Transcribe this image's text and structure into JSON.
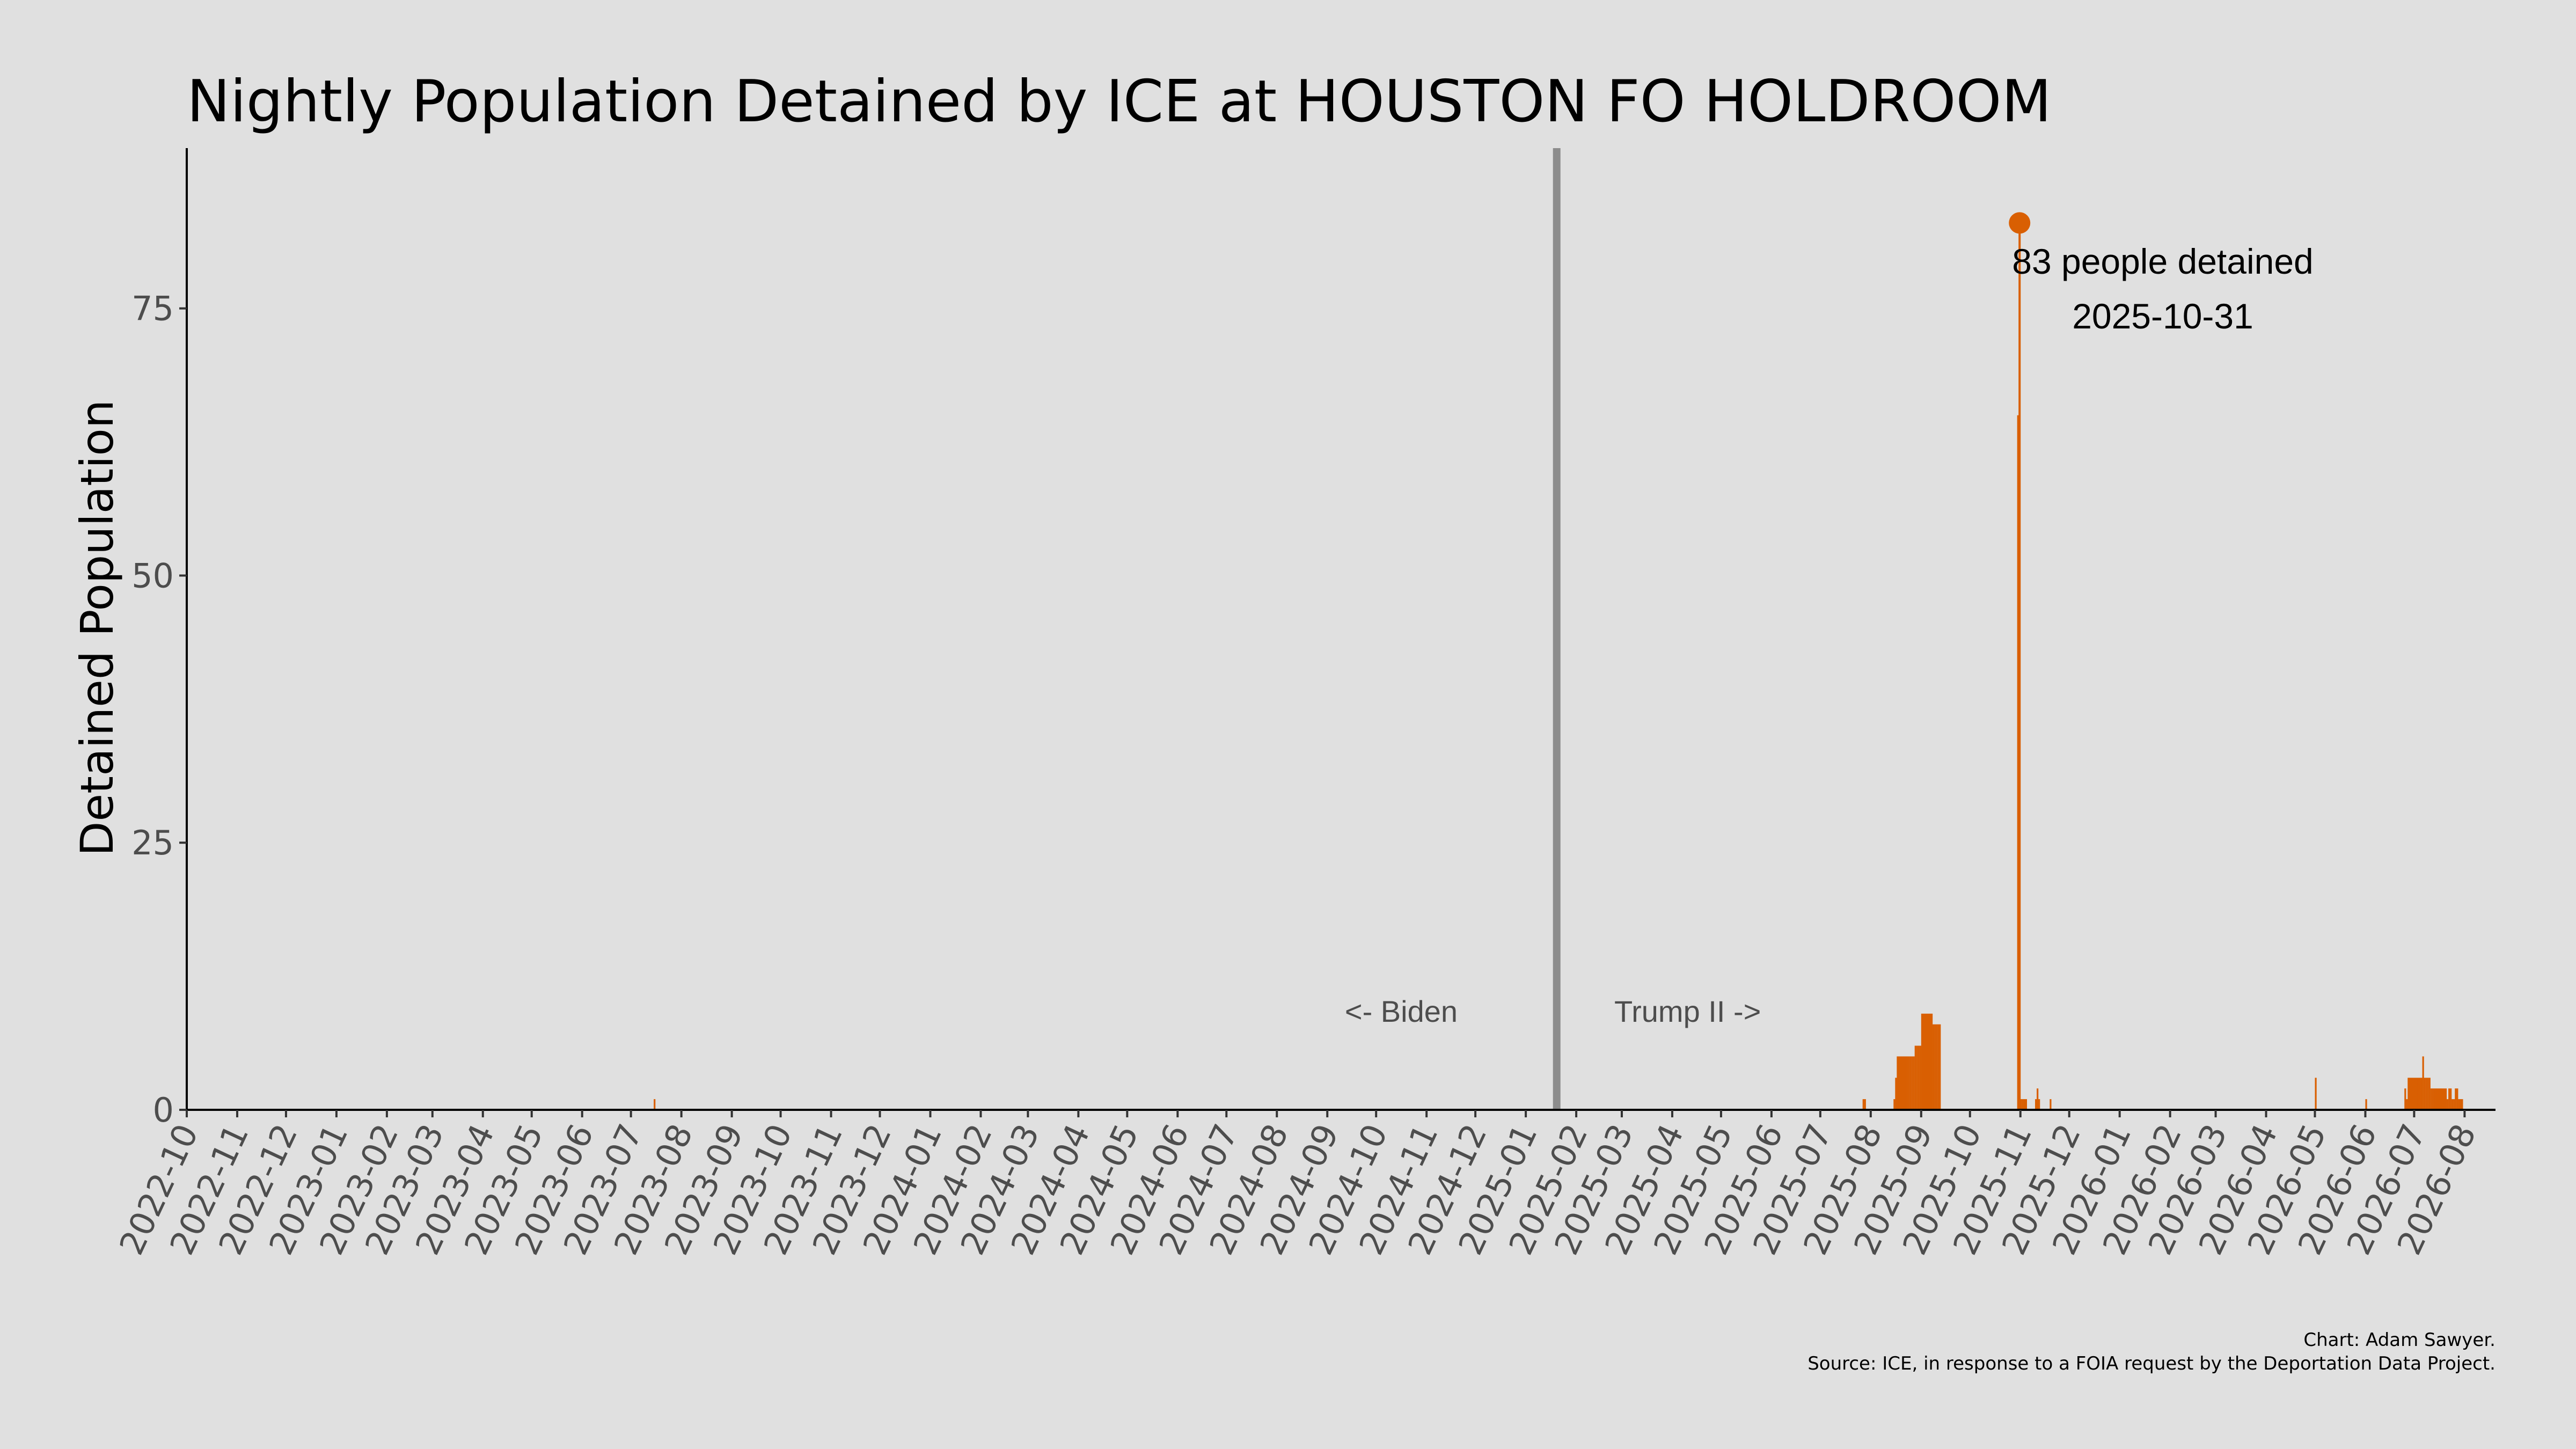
{
  "chart_data": {
    "type": "bar",
    "title": "Nightly Population Detained by ICE at HOUSTON FO HOLDROOM",
    "xlabel": "",
    "ylabel": "Detained Population",
    "x_range": [
      "2022-10-01",
      "2026-08-20"
    ],
    "ylim": [
      0,
      90
    ],
    "yticks": [
      0,
      25,
      50,
      75
    ],
    "xticks": [
      "2022-10",
      "2022-11",
      "2022-12",
      "2023-01",
      "2023-02",
      "2023-03",
      "2023-04",
      "2023-05",
      "2023-06",
      "2023-07",
      "2023-08",
      "2023-09",
      "2023-10",
      "2023-11",
      "2023-12",
      "2024-01",
      "2024-02",
      "2024-03",
      "2024-04",
      "2024-05",
      "2024-06",
      "2024-07",
      "2024-08",
      "2024-09",
      "2024-10",
      "2024-11",
      "2024-12",
      "2025-01",
      "2025-02",
      "2025-03",
      "2025-04",
      "2025-05",
      "2025-06",
      "2025-07",
      "2025-08",
      "2025-09",
      "2025-10",
      "2025-11",
      "2025-12",
      "2026-01",
      "2026-02",
      "2026-03",
      "2026-04",
      "2026-05",
      "2026-06",
      "2026-07",
      "2026-08"
    ],
    "grid": false,
    "legend": "none",
    "bar_color": "#d95f02",
    "series": [
      {
        "values": [
          {
            "date": "2023-07-15",
            "value": 1
          },
          {
            "date": "2025-07-27",
            "value": 1
          },
          {
            "date": "2025-07-28",
            "value": 1
          },
          {
            "date": "2025-08-15",
            "value": 1
          },
          {
            "date": "2025-08-16",
            "value": 3
          },
          {
            "date": "2025-08-17",
            "value": 5
          },
          {
            "date": "2025-08-18",
            "value": 5
          },
          {
            "date": "2025-08-19",
            "value": 5
          },
          {
            "date": "2025-08-20",
            "value": 5
          },
          {
            "date": "2025-08-21",
            "value": 5
          },
          {
            "date": "2025-08-22",
            "value": 5
          },
          {
            "date": "2025-08-23",
            "value": 5
          },
          {
            "date": "2025-08-24",
            "value": 5
          },
          {
            "date": "2025-08-25",
            "value": 5
          },
          {
            "date": "2025-08-26",
            "value": 5
          },
          {
            "date": "2025-08-27",
            "value": 5
          },
          {
            "date": "2025-08-28",
            "value": 6
          },
          {
            "date": "2025-08-29",
            "value": 6
          },
          {
            "date": "2025-08-30",
            "value": 6
          },
          {
            "date": "2025-08-31",
            "value": 6
          },
          {
            "date": "2025-09-01",
            "value": 9
          },
          {
            "date": "2025-09-02",
            "value": 9
          },
          {
            "date": "2025-09-03",
            "value": 9
          },
          {
            "date": "2025-09-04",
            "value": 9
          },
          {
            "date": "2025-09-05",
            "value": 9
          },
          {
            "date": "2025-09-06",
            "value": 9
          },
          {
            "date": "2025-09-07",
            "value": 9
          },
          {
            "date": "2025-09-08",
            "value": 8
          },
          {
            "date": "2025-09-09",
            "value": 8
          },
          {
            "date": "2025-09-10",
            "value": 8
          },
          {
            "date": "2025-09-11",
            "value": 8
          },
          {
            "date": "2025-09-12",
            "value": 8
          },
          {
            "date": "2025-10-30",
            "value": 65
          },
          {
            "date": "2025-10-31",
            "value": 83
          },
          {
            "date": "2025-11-01",
            "value": 1
          },
          {
            "date": "2025-11-02",
            "value": 1
          },
          {
            "date": "2025-11-03",
            "value": 1
          },
          {
            "date": "2025-11-04",
            "value": 1
          },
          {
            "date": "2025-11-10",
            "value": 1
          },
          {
            "date": "2025-11-11",
            "value": 2
          },
          {
            "date": "2025-11-12",
            "value": 1
          },
          {
            "date": "2025-11-19",
            "value": 1
          },
          {
            "date": "2026-05-01",
            "value": 3
          },
          {
            "date": "2026-06-01",
            "value": 1
          },
          {
            "date": "2026-06-25",
            "value": 2
          },
          {
            "date": "2026-06-26",
            "value": 1
          },
          {
            "date": "2026-06-27",
            "value": 3
          },
          {
            "date": "2026-06-28",
            "value": 3
          },
          {
            "date": "2026-06-29",
            "value": 3
          },
          {
            "date": "2026-06-30",
            "value": 3
          },
          {
            "date": "2026-07-01",
            "value": 3
          },
          {
            "date": "2026-07-02",
            "value": 3
          },
          {
            "date": "2026-07-03",
            "value": 3
          },
          {
            "date": "2026-07-04",
            "value": 3
          },
          {
            "date": "2026-07-05",
            "value": 3
          },
          {
            "date": "2026-07-06",
            "value": 5
          },
          {
            "date": "2026-07-07",
            "value": 3
          },
          {
            "date": "2026-07-08",
            "value": 3
          },
          {
            "date": "2026-07-09",
            "value": 3
          },
          {
            "date": "2026-07-10",
            "value": 3
          },
          {
            "date": "2026-07-11",
            "value": 2
          },
          {
            "date": "2026-07-12",
            "value": 2
          },
          {
            "date": "2026-07-13",
            "value": 2
          },
          {
            "date": "2026-07-14",
            "value": 2
          },
          {
            "date": "2026-07-15",
            "value": 2
          },
          {
            "date": "2026-07-16",
            "value": 2
          },
          {
            "date": "2026-07-17",
            "value": 2
          },
          {
            "date": "2026-07-18",
            "value": 2
          },
          {
            "date": "2026-07-19",
            "value": 2
          },
          {
            "date": "2026-07-20",
            "value": 2
          },
          {
            "date": "2026-07-21",
            "value": 1
          },
          {
            "date": "2026-07-22",
            "value": 2
          },
          {
            "date": "2026-07-23",
            "value": 2
          },
          {
            "date": "2026-07-24",
            "value": 1
          },
          {
            "date": "2026-07-25",
            "value": 1
          },
          {
            "date": "2026-07-26",
            "value": 2
          },
          {
            "date": "2026-07-27",
            "value": 2
          },
          {
            "date": "2026-07-28",
            "value": 1
          },
          {
            "date": "2026-07-29",
            "value": 1
          },
          {
            "date": "2026-07-30",
            "value": 1
          }
        ]
      }
    ],
    "divider": {
      "date": "2025-01-20",
      "color": "#8c8c8c"
    },
    "era_labels": {
      "left": "<- Biden",
      "right": "Trump II ->"
    },
    "peak": {
      "date": "2025-10-31",
      "value": 83,
      "line1": "83 people detained",
      "line2": "2025-10-31"
    },
    "credits": {
      "line1": "Chart: Adam Sawyer.",
      "line2": "Source: ICE, in response to a FOIA request by the Deportation Data Project."
    }
  }
}
